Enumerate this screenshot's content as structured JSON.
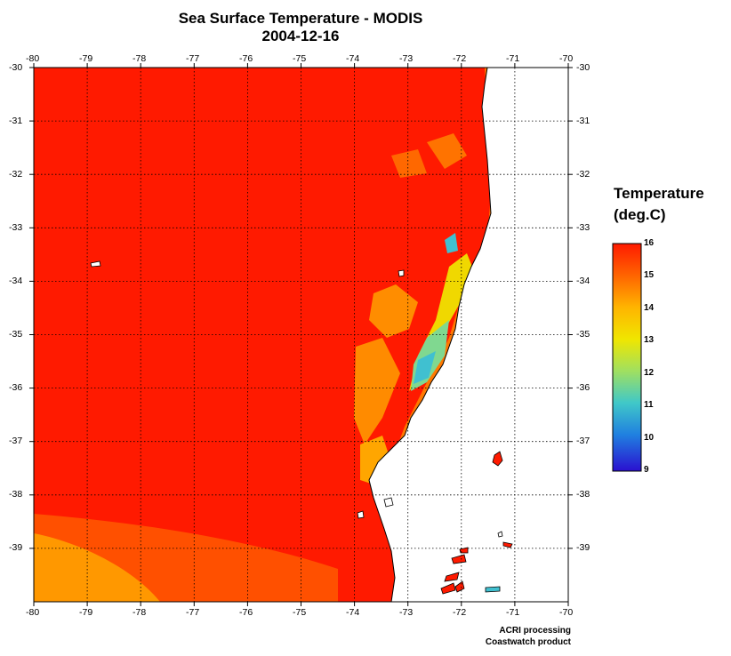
{
  "title": "Sea Surface Temperature - MODIS",
  "date": "2004-12-16",
  "x_ticks": [
    "-80",
    "-79",
    "-78",
    "-77",
    "-76",
    "-75",
    "-74",
    "-73",
    "-72",
    "-71",
    "-70"
  ],
  "y_ticks": [
    "-30",
    "-31",
    "-32",
    "-33",
    "-34",
    "-35",
    "-36",
    "-37",
    "-38",
    "-39"
  ],
  "colorbar": {
    "title_line1": "Temperature",
    "title_line2": "(deg.C)",
    "labels": [
      "16",
      "15",
      "14",
      "13",
      "12",
      "11",
      "10",
      "9"
    ],
    "colors": [
      "#ff1a00",
      "#ff6400",
      "#ffb400",
      "#f0e600",
      "#a0e060",
      "#40c8c8",
      "#2080e0",
      "#2030e0",
      "#2a10d0"
    ]
  },
  "credit_line1": "ACRI processing",
  "credit_line2": "Coastwatch product",
  "colors": {
    "ocean": "#ff1a00",
    "land": "#ffffff",
    "coast": "#000000"
  }
}
